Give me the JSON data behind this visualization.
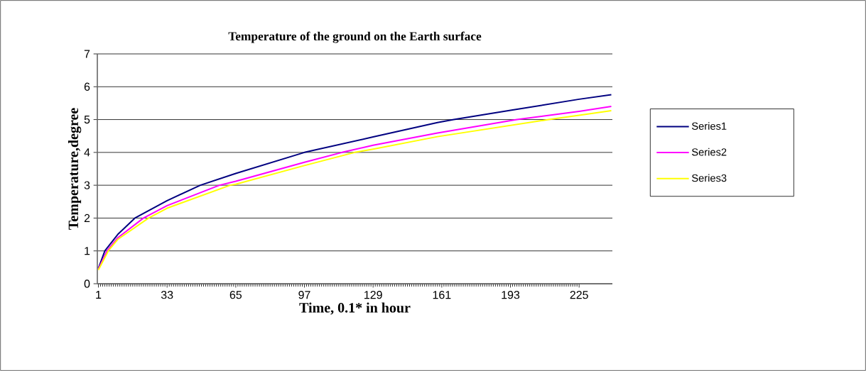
{
  "chart_data": {
    "type": "line",
    "title": "Temperature of the ground on the Earth surface",
    "xlabel": "Time, 0.1* in hour",
    "ylabel": "Temperature,degree",
    "series": [
      {
        "name": "Series1",
        "color": "#000080",
        "x": [
          1,
          4,
          10,
          18,
          33,
          48.5,
          65,
          97,
          129,
          159,
          166.6,
          193,
          225,
          240
        ],
        "values": [
          0.47,
          1.0,
          1.5,
          2.0,
          2.53,
          3.0,
          3.36,
          4.0,
          4.47,
          4.91,
          5.0,
          5.28,
          5.62,
          5.76
        ]
      },
      {
        "name": "Series2",
        "color": "#ff00ff",
        "x": [
          1,
          5,
          10,
          22,
          33,
          57.4,
          65,
          97,
          114.5,
          129,
          159,
          196,
          225,
          240
        ],
        "values": [
          0.45,
          1.0,
          1.4,
          2.0,
          2.38,
          3.0,
          3.12,
          3.7,
          4.0,
          4.22,
          4.59,
          5.0,
          5.25,
          5.4
        ]
      },
      {
        "name": "Series3",
        "color": "#ffff00",
        "x": [
          1,
          5.6,
          10,
          24.4,
          33,
          62.4,
          65,
          97,
          120.4,
          129,
          159,
          210.8,
          225,
          240
        ],
        "values": [
          0.42,
          1.0,
          1.35,
          2.0,
          2.3,
          3.0,
          3.03,
          3.6,
          4.0,
          4.1,
          4.48,
          5.0,
          5.13,
          5.27
        ]
      }
    ],
    "xlim": [
      0.5,
      240.5
    ],
    "xticks": [
      1,
      33,
      65,
      97,
      129,
      161,
      193,
      225
    ],
    "ylim": [
      0,
      7
    ],
    "yticks": [
      0,
      1,
      2,
      3,
      4,
      5,
      6,
      7
    ],
    "grid": "y",
    "legend": "right",
    "marker": "none",
    "line_style": "solid"
  }
}
